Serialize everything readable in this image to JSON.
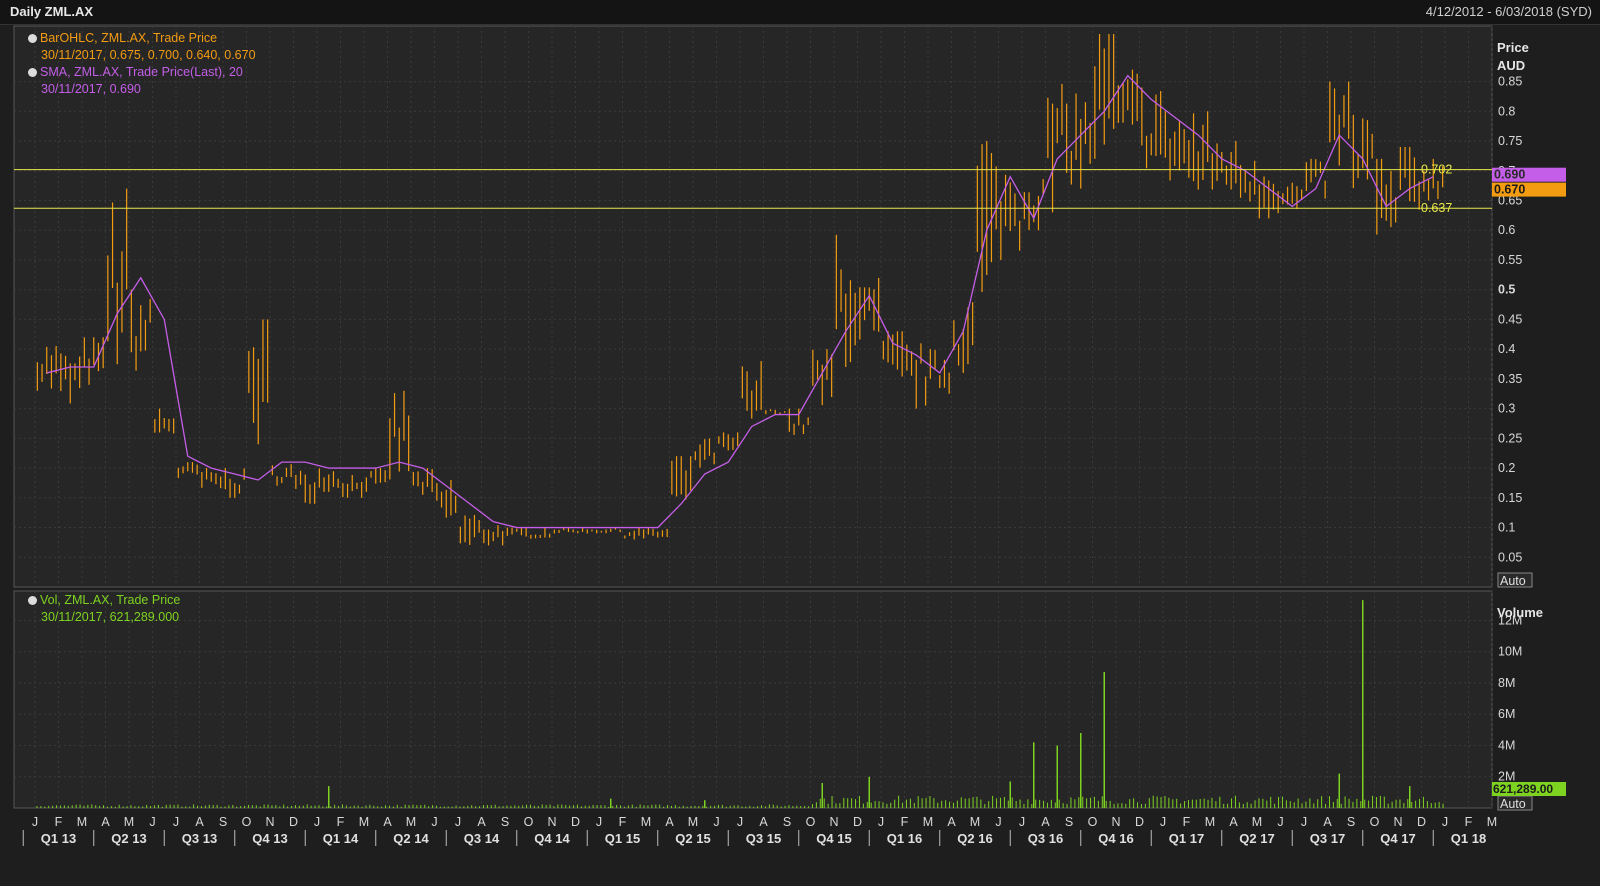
{
  "header": {
    "title": "Daily ZML.AX",
    "range": "4/12/2012 - 6/03/2018 (SYD)"
  },
  "legend": {
    "ohlc_name": "BarOHLC, ZML.AX, Trade Price",
    "ohlc_value": "30/11/2017, 0.675, 0.700, 0.640, 0.670",
    "sma_name": "SMA, ZML.AX, Trade Price(Last),  20",
    "sma_value": "30/11/2017, 0.690",
    "vol_name": "Vol, ZML.AX, Trade Price",
    "vol_value": "30/11/2017, 621,289.000"
  },
  "colors": {
    "ohlc": "#f39c12",
    "sma": "#c45ee8",
    "volume": "#7ed321",
    "hline": "#e8e84a",
    "background": "#262626",
    "grid": "#3a3a3a"
  },
  "chart_data": [
    {
      "type": "line",
      "title": "",
      "ylabel_line1": "Price",
      "ylabel_line2": "AUD",
      "auto_label": "Auto",
      "ylim": [
        0,
        0.93
      ],
      "yticks": [
        0.05,
        0.1,
        0.15,
        0.2,
        0.25,
        0.3,
        0.35,
        0.4,
        0.45,
        0.5,
        0.55,
        0.6,
        0.65,
        0.7,
        0.75,
        0.8,
        0.85
      ],
      "ytick_labels": [
        "0.05",
        "0.1",
        "0.15",
        "0.2",
        "0.25",
        "0.3",
        "0.35",
        "0.4",
        "0.45",
        "0.5",
        "0.55",
        "0.6",
        "0.65",
        "0.7",
        "0.75",
        "0.8",
        "0.85"
      ],
      "hlines": [
        {
          "value": 0.702,
          "label": "0.702"
        },
        {
          "value": 0.637,
          "label": "0.637"
        }
      ],
      "last_markers": [
        {
          "value": 0.69,
          "label": "0.690",
          "color": "#c45ee8"
        },
        {
          "value": 0.67,
          "label": "0.670",
          "color": "#f39c12"
        }
      ],
      "series": [
        {
          "name": "BarOHLC, ZML.AX, Trade Price",
          "style": "ohlc",
          "x": [
            "2013-01",
            "2013-02",
            "2013-03",
            "2013-04",
            "2013-05",
            "2013-06",
            "2013-07",
            "2013-08",
            "2013-09",
            "2013-10",
            "2013-11",
            "2013-12",
            "2014-01",
            "2014-02",
            "2014-03",
            "2014-04",
            "2014-05",
            "2014-06",
            "2014-07",
            "2014-08",
            "2014-09",
            "2014-10",
            "2014-11",
            "2014-12",
            "2015-01",
            "2015-02",
            "2015-03",
            "2015-04",
            "2015-05",
            "2015-06",
            "2015-07",
            "2015-08",
            "2015-09",
            "2015-10",
            "2015-11",
            "2015-12",
            "2016-01",
            "2016-02",
            "2016-03",
            "2016-04",
            "2016-05",
            "2016-06",
            "2016-07",
            "2016-08",
            "2016-09",
            "2016-10",
            "2016-11",
            "2016-12",
            "2017-01",
            "2017-02",
            "2017-03",
            "2017-04",
            "2017-05",
            "2017-06",
            "2017-07",
            "2017-08",
            "2017-09",
            "2017-10",
            "2017-11",
            "2017-12"
          ],
          "high": [
            0.41,
            0.4,
            0.42,
            0.67,
            0.5,
            0.3,
            0.21,
            0.2,
            0.2,
            0.45,
            0.21,
            0.2,
            0.2,
            0.19,
            0.2,
            0.33,
            0.2,
            0.18,
            0.13,
            0.11,
            0.1,
            0.1,
            0.1,
            0.1,
            0.1,
            0.1,
            0.1,
            0.22,
            0.25,
            0.26,
            0.38,
            0.3,
            0.3,
            0.4,
            0.6,
            0.52,
            0.43,
            0.42,
            0.4,
            0.49,
            0.75,
            0.72,
            0.7,
            0.85,
            0.83,
            0.93,
            0.87,
            0.84,
            0.8,
            0.8,
            0.76,
            0.75,
            0.72,
            0.68,
            0.72,
            0.85,
            0.8,
            0.72,
            0.74,
            0.72
          ],
          "low": [
            0.33,
            0.3,
            0.34,
            0.35,
            0.36,
            0.25,
            0.18,
            0.16,
            0.15,
            0.24,
            0.17,
            0.14,
            0.16,
            0.15,
            0.16,
            0.18,
            0.15,
            0.1,
            0.05,
            0.07,
            0.08,
            0.08,
            0.09,
            0.09,
            0.09,
            0.08,
            0.08,
            0.13,
            0.2,
            0.22,
            0.25,
            0.29,
            0.25,
            0.3,
            0.37,
            0.38,
            0.33,
            0.3,
            0.32,
            0.36,
            0.45,
            0.55,
            0.6,
            0.62,
            0.67,
            0.72,
            0.72,
            0.7,
            0.68,
            0.64,
            0.66,
            0.63,
            0.62,
            0.63,
            0.65,
            0.7,
            0.65,
            0.56,
            0.62,
            0.65
          ]
        },
        {
          "name": "SMA, ZML.AX, Trade Price(Last),  20",
          "style": "line",
          "x": [
            "2013-01",
            "2013-02",
            "2013-03",
            "2013-04",
            "2013-05",
            "2013-06",
            "2013-07",
            "2013-08",
            "2013-09",
            "2013-10",
            "2013-11",
            "2013-12",
            "2014-01",
            "2014-02",
            "2014-03",
            "2014-04",
            "2014-05",
            "2014-06",
            "2014-07",
            "2014-08",
            "2014-09",
            "2014-10",
            "2014-11",
            "2014-12",
            "2015-01",
            "2015-02",
            "2015-03",
            "2015-04",
            "2015-05",
            "2015-06",
            "2015-07",
            "2015-08",
            "2015-09",
            "2015-10",
            "2015-11",
            "2015-12",
            "2016-01",
            "2016-02",
            "2016-03",
            "2016-04",
            "2016-05",
            "2016-06",
            "2016-07",
            "2016-08",
            "2016-09",
            "2016-10",
            "2016-11",
            "2016-12",
            "2017-01",
            "2017-02",
            "2017-03",
            "2017-04",
            "2017-05",
            "2017-06",
            "2017-07",
            "2017-08",
            "2017-09",
            "2017-10",
            "2017-11",
            "2017-12"
          ],
          "values": [
            0.36,
            0.37,
            0.37,
            0.46,
            0.52,
            0.45,
            0.22,
            0.2,
            0.19,
            0.18,
            0.21,
            0.21,
            0.2,
            0.2,
            0.2,
            0.21,
            0.2,
            0.17,
            0.14,
            0.11,
            0.1,
            0.1,
            0.1,
            0.1,
            0.1,
            0.1,
            0.1,
            0.14,
            0.19,
            0.21,
            0.27,
            0.29,
            0.29,
            0.36,
            0.43,
            0.49,
            0.41,
            0.39,
            0.36,
            0.43,
            0.6,
            0.69,
            0.62,
            0.72,
            0.76,
            0.8,
            0.86,
            0.82,
            0.79,
            0.76,
            0.72,
            0.7,
            0.67,
            0.64,
            0.67,
            0.76,
            0.72,
            0.64,
            0.67,
            0.69
          ]
        }
      ]
    },
    {
      "type": "bar",
      "title": "",
      "ylabel": "Volume",
      "auto_label": "Auto",
      "ylim": [
        0,
        13500000
      ],
      "yticks": [
        2000000,
        4000000,
        6000000,
        8000000,
        10000000,
        12000000
      ],
      "ytick_labels": [
        "2M",
        "4M",
        "6M",
        "8M",
        "10M",
        "12M"
      ],
      "last_marker": {
        "value": 621289,
        "label": "621,289.00",
        "color": "#7ed321"
      },
      "series": [
        {
          "name": "Vol, ZML.AX, Trade Price",
          "x": [
            "2014-01",
            "2015-01",
            "2015-05",
            "2015-10",
            "2015-12",
            "2016-06",
            "2016-07",
            "2016-08",
            "2016-09",
            "2016-10",
            "2017-08",
            "2017-09",
            "2017-11"
          ],
          "values": [
            1400000,
            600000,
            500000,
            1600000,
            2000000,
            1700000,
            4200000,
            4000000,
            4800000,
            8700000,
            2200000,
            13300000,
            1400000
          ]
        }
      ]
    }
  ],
  "xaxis": {
    "months": [
      {
        "x": "2013-01",
        "label": "J"
      },
      {
        "x": "2013-02",
        "label": "F"
      },
      {
        "x": "2013-03",
        "label": "M"
      },
      {
        "x": "2013-04",
        "label": "A"
      },
      {
        "x": "2013-05",
        "label": "M"
      },
      {
        "x": "2013-06",
        "label": "J"
      },
      {
        "x": "2013-07",
        "label": "J"
      },
      {
        "x": "2013-08",
        "label": "A"
      },
      {
        "x": "2013-09",
        "label": "S"
      },
      {
        "x": "2013-10",
        "label": "O"
      },
      {
        "x": "2013-11",
        "label": "N"
      },
      {
        "x": "2013-12",
        "label": "D"
      },
      {
        "x": "2014-01",
        "label": "J"
      },
      {
        "x": "2014-02",
        "label": "F"
      },
      {
        "x": "2014-03",
        "label": "M"
      },
      {
        "x": "2014-04",
        "label": "A"
      },
      {
        "x": "2014-05",
        "label": "M"
      },
      {
        "x": "2014-06",
        "label": "J"
      },
      {
        "x": "2014-07",
        "label": "J"
      },
      {
        "x": "2014-08",
        "label": "A"
      },
      {
        "x": "2014-09",
        "label": "S"
      },
      {
        "x": "2014-10",
        "label": "O"
      },
      {
        "x": "2014-11",
        "label": "N"
      },
      {
        "x": "2014-12",
        "label": "D"
      },
      {
        "x": "2015-01",
        "label": "J"
      },
      {
        "x": "2015-02",
        "label": "F"
      },
      {
        "x": "2015-03",
        "label": "M"
      },
      {
        "x": "2015-04",
        "label": "A"
      },
      {
        "x": "2015-05",
        "label": "M"
      },
      {
        "x": "2015-06",
        "label": "J"
      },
      {
        "x": "2015-07",
        "label": "J"
      },
      {
        "x": "2015-08",
        "label": "A"
      },
      {
        "x": "2015-09",
        "label": "S"
      },
      {
        "x": "2015-10",
        "label": "O"
      },
      {
        "x": "2015-11",
        "label": "N"
      },
      {
        "x": "2015-12",
        "label": "D"
      },
      {
        "x": "2016-01",
        "label": "J"
      },
      {
        "x": "2016-02",
        "label": "F"
      },
      {
        "x": "2016-03",
        "label": "M"
      },
      {
        "x": "2016-04",
        "label": "A"
      },
      {
        "x": "2016-05",
        "label": "M"
      },
      {
        "x": "2016-06",
        "label": "J"
      },
      {
        "x": "2016-07",
        "label": "J"
      },
      {
        "x": "2016-08",
        "label": "A"
      },
      {
        "x": "2016-09",
        "label": "S"
      },
      {
        "x": "2016-10",
        "label": "O"
      },
      {
        "x": "2016-11",
        "label": "N"
      },
      {
        "x": "2016-12",
        "label": "D"
      },
      {
        "x": "2017-01",
        "label": "J"
      },
      {
        "x": "2017-02",
        "label": "F"
      },
      {
        "x": "2017-03",
        "label": "M"
      },
      {
        "x": "2017-04",
        "label": "A"
      },
      {
        "x": "2017-05",
        "label": "M"
      },
      {
        "x": "2017-06",
        "label": "J"
      },
      {
        "x": "2017-07",
        "label": "J"
      },
      {
        "x": "2017-08",
        "label": "A"
      },
      {
        "x": "2017-09",
        "label": "S"
      },
      {
        "x": "2017-10",
        "label": "O"
      },
      {
        "x": "2017-11",
        "label": "N"
      },
      {
        "x": "2017-12",
        "label": "D"
      },
      {
        "x": "2018-01",
        "label": "J"
      },
      {
        "x": "2018-02",
        "label": "F"
      },
      {
        "x": "2018-03",
        "label": "M"
      }
    ],
    "quarters": [
      {
        "x": "2013-02",
        "label": "Q1 13"
      },
      {
        "x": "2013-05",
        "label": "Q2 13"
      },
      {
        "x": "2013-08",
        "label": "Q3 13"
      },
      {
        "x": "2013-11",
        "label": "Q4 13"
      },
      {
        "x": "2014-02",
        "label": "Q1 14"
      },
      {
        "x": "2014-05",
        "label": "Q2 14"
      },
      {
        "x": "2014-08",
        "label": "Q3 14"
      },
      {
        "x": "2014-11",
        "label": "Q4 14"
      },
      {
        "x": "2015-02",
        "label": "Q1 15"
      },
      {
        "x": "2015-05",
        "label": "Q2 15"
      },
      {
        "x": "2015-08",
        "label": "Q3 15"
      },
      {
        "x": "2015-11",
        "label": "Q4 15"
      },
      {
        "x": "2016-02",
        "label": "Q1 16"
      },
      {
        "x": "2016-05",
        "label": "Q2 16"
      },
      {
        "x": "2016-08",
        "label": "Q3 16"
      },
      {
        "x": "2016-11",
        "label": "Q4 16"
      },
      {
        "x": "2017-02",
        "label": "Q1 17"
      },
      {
        "x": "2017-05",
        "label": "Q2 17"
      },
      {
        "x": "2017-08",
        "label": "Q3 17"
      },
      {
        "x": "2017-11",
        "label": "Q4 17"
      },
      {
        "x": "2018-02",
        "label": "Q1 18"
      }
    ]
  }
}
